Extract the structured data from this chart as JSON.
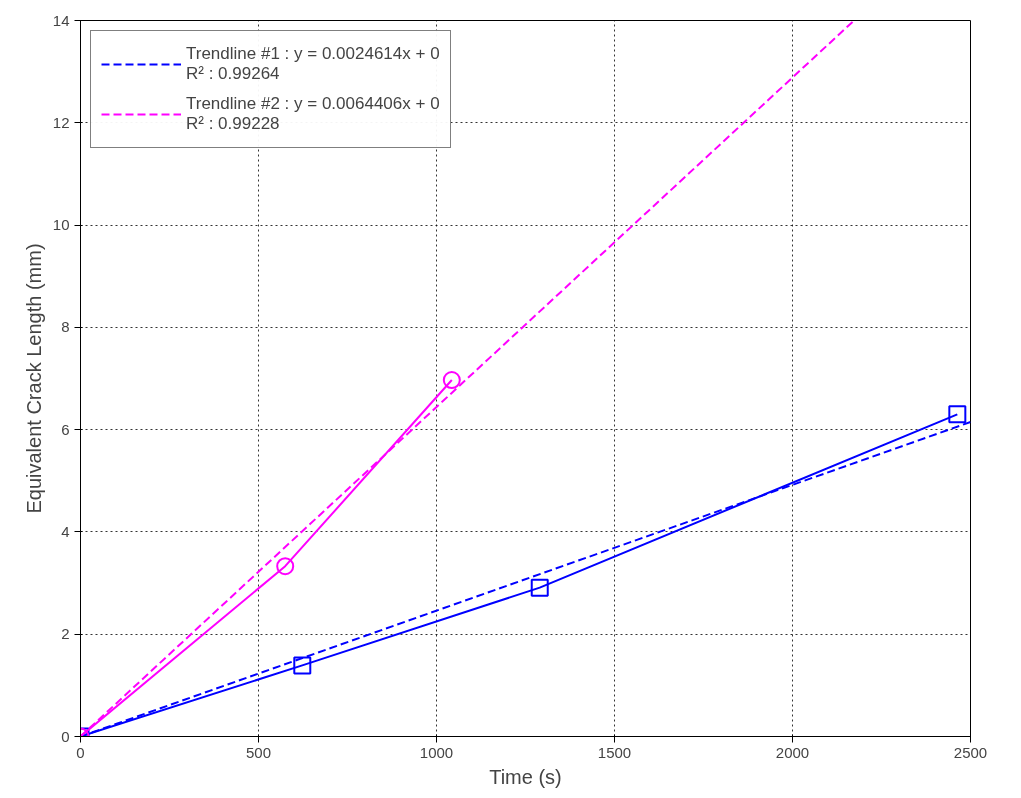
{
  "chart_data": {
    "type": "line",
    "xlabel": "Time (s)",
    "ylabel": "Equivalent Crack Length (mm)",
    "xlim": [
      0,
      2500
    ],
    "ylim": [
      0,
      14
    ],
    "xticks": [
      0,
      500,
      1000,
      1500,
      2000,
      2500
    ],
    "yticks": [
      0,
      2,
      4,
      6,
      8,
      10,
      12,
      14
    ],
    "grid": true,
    "legend": "top left",
    "series": [
      {
        "name": "Trendline #1 : y = 0.0024614x + 0\nR² : 0.99264",
        "color": "#0000ff",
        "x": [
          0,
          2500
        ],
        "values": [
          0,
          6.15
        ],
        "line_style": "dashed"
      },
      {
        "name": "Trendline #2 : y = 0.0064406x + 0\nR² : 0.99228",
        "color": "#ff00ff",
        "x": [
          0,
          2173
        ],
        "values": [
          0,
          14
        ],
        "line_style": "dashed"
      },
      {
        "color": "#0000ff",
        "x": [
          0,
          623,
          1290,
          2463
        ],
        "values": [
          0,
          1.39,
          2.91,
          6.3
        ],
        "line_style": "solid",
        "marker": "square"
      },
      {
        "color": "#ff00ff",
        "x": [
          0,
          575,
          1043
        ],
        "values": [
          0,
          3.33,
          6.97
        ],
        "line_style": "solid",
        "marker": "circle"
      }
    ]
  }
}
